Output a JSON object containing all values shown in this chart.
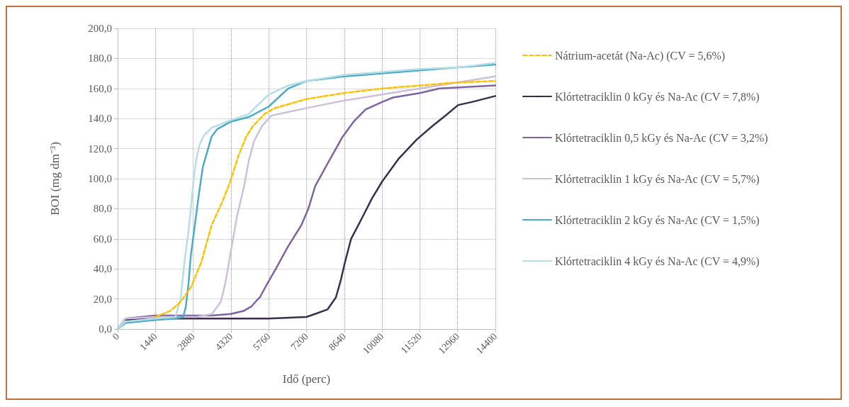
{
  "chart_data": {
    "type": "line",
    "xlabel": "Idő (perc)",
    "ylabel": "BOI (mg dm⁻³)",
    "xlim": [
      0,
      14400
    ],
    "xticks": [
      0,
      1440,
      2880,
      4320,
      5760,
      7200,
      8640,
      10080,
      11520,
      12960,
      14400
    ],
    "ylim": [
      0,
      200
    ],
    "yticks": [
      {
        "value": 0,
        "label": "0,0"
      },
      {
        "value": 20,
        "label": "20,0"
      },
      {
        "value": 40,
        "label": "40,0"
      },
      {
        "value": 60,
        "label": "60,0"
      },
      {
        "value": 80,
        "label": "80,0"
      },
      {
        "value": 100,
        "label": "100,0"
      },
      {
        "value": 120,
        "label": "120,0"
      },
      {
        "value": 140,
        "label": "140,0"
      },
      {
        "value": 160,
        "label": "160,0"
      },
      {
        "value": 180,
        "label": "180,0"
      },
      {
        "value": 200,
        "label": "200,0"
      }
    ],
    "grid": true,
    "legend": "right",
    "marker": "none",
    "series": [
      {
        "name": "Nátrium-acetát (Na-Ac) (CV = 5,6%)",
        "color": "#ffc000",
        "line_style": "dashed",
        "x": [
          1440,
          2000,
          2400,
          2800,
          3200,
          3580,
          4000,
          4290,
          4600,
          4900,
          5160,
          5600,
          6000,
          7200,
          8640,
          10080,
          11520,
          12960,
          14400
        ],
        "values": [
          8,
          12,
          18,
          28,
          45,
          69,
          85,
          98,
          115,
          128,
          135,
          143,
          147,
          153,
          157,
          160,
          162,
          164,
          165
        ]
      },
      {
        "name": "Klórtetraciklin 0 kGy és Na-Ac (CV = 7,8%)",
        "color": "#3c2d4e",
        "line_style": "solid",
        "x": [
          0,
          300,
          1440,
          5760,
          7200,
          7530,
          8000,
          8320,
          8500,
          8660,
          8900,
          9290,
          9700,
          10080,
          10700,
          11400,
          12000,
          12500,
          12980,
          13500,
          14400
        ],
        "values": [
          0,
          6,
          7,
          7,
          8,
          10,
          13,
          21,
          32,
          44,
          60,
          73,
          87,
          98,
          113,
          126,
          135,
          142,
          149,
          151,
          155
        ]
      },
      {
        "name": "Klórtetraciklin 0,5 kGy és Na-Ac (CV = 3,2%)",
        "color": "#8064a2",
        "line_style": "solid",
        "x": [
          0,
          300,
          1440,
          3600,
          4320,
          4800,
          5100,
          5300,
          5420,
          5700,
          6030,
          6500,
          7000,
          7270,
          7530,
          8000,
          8580,
          9000,
          9450,
          10080,
          10500,
          11520,
          12270,
          14400
        ],
        "values": [
          0,
          7,
          9,
          9,
          10,
          12,
          15,
          19,
          21,
          30,
          40,
          55,
          69,
          80,
          95,
          110,
          128,
          138,
          146,
          151,
          154,
          157,
          160,
          162
        ]
      },
      {
        "name": "Klórtetraciklin 1 kGy és Na-Ac (CV = 5,7%)",
        "color": "#ccc0da",
        "line_style": "solid",
        "x": [
          0,
          300,
          1440,
          3000,
          3600,
          3930,
          4100,
          4290,
          4550,
          4820,
          5000,
          5200,
          5500,
          5870,
          7200,
          8640,
          10080,
          11520,
          12960,
          14400
        ],
        "values": [
          0,
          7,
          8,
          8,
          10,
          18,
          30,
          49,
          75,
          95,
          112,
          125,
          135,
          142,
          147,
          152,
          156,
          160,
          164,
          168
        ]
      },
      {
        "name": "Klórtetraciklin 2 kGy és Na-Ac (CV = 1,5%)",
        "color": "#4bacc6",
        "line_style": "solid",
        "x": [
          0,
          300,
          1440,
          2200,
          2500,
          2600,
          2700,
          2790,
          2950,
          3100,
          3250,
          3400,
          3580,
          3800,
          4320,
          5000,
          5760,
          6500,
          7200,
          8640,
          10080,
          11520,
          12960,
          14400
        ],
        "values": [
          0,
          4,
          6,
          7,
          8,
          15,
          30,
          49,
          70,
          90,
          108,
          117,
          128,
          133,
          138,
          141,
          148,
          160,
          165,
          168,
          170,
          172,
          174,
          176
        ]
      },
      {
        "name": "Klórtetraciklin 4 kGy és Na-Ac (CV = 4,9%)",
        "color": "#b7dee8",
        "line_style": "solid",
        "x": [
          0,
          300,
          1440,
          2200,
          2400,
          2550,
          2700,
          2790,
          2900,
          3000,
          3130,
          3300,
          3600,
          4320,
          5000,
          5400,
          5760,
          6500,
          7200,
          8640,
          10080,
          11520,
          12960,
          14400
        ],
        "values": [
          0,
          5,
          7,
          8,
          20,
          45,
          65,
          80,
          100,
          113,
          123,
          129,
          134,
          139,
          143,
          150,
          156,
          162,
          165,
          169,
          171,
          173,
          174,
          177
        ]
      }
    ]
  }
}
